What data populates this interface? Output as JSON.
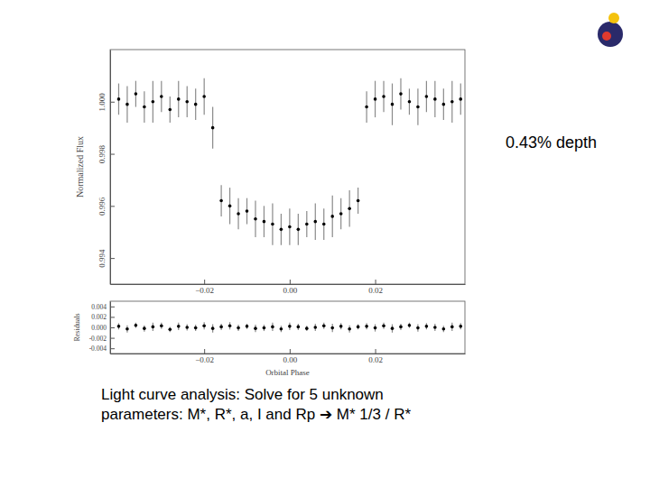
{
  "chart_data": [
    {
      "type": "scatter",
      "y_label": "Normalized Flux",
      "color": "#000000",
      "xlim": [
        -0.042,
        0.041
      ],
      "ylim": [
        0.993,
        1.002
      ],
      "xticks": [
        {
          "value": -0.02,
          "label": "−0.02"
        },
        {
          "value": 0,
          "label": "0.00"
        },
        {
          "value": 0.02,
          "label": "0.02"
        }
      ],
      "yticks": [
        {
          "value": 1,
          "label": "1.000"
        },
        0.998,
        0.996,
        0.994
      ],
      "annotations": [
        "0.43% depth"
      ],
      "x": [
        -0.04,
        -0.038,
        -0.036,
        -0.034,
        -0.032,
        -0.03,
        -0.028,
        -0.026,
        -0.024,
        -0.022,
        -0.02,
        -0.018,
        -0.016,
        -0.014,
        -0.012,
        -0.01,
        -0.008,
        -0.006,
        -0.004,
        -0.002,
        0.0,
        0.002,
        0.004,
        0.006,
        0.008,
        0.01,
        0.012,
        0.014,
        0.016,
        0.018,
        0.02,
        0.022,
        0.024,
        0.026,
        0.028,
        0.03,
        0.032,
        0.034,
        0.036,
        0.038,
        0.04
      ],
      "values": [
        1.0001,
        0.9999,
        1.0003,
        0.9998,
        1.0,
        1.0002,
        0.9997,
        1.0001,
        1.0,
        0.9999,
        1.0002,
        0.999,
        0.9962,
        0.996,
        0.9957,
        0.9958,
        0.9955,
        0.9954,
        0.9953,
        0.9951,
        0.9952,
        0.9951,
        0.9953,
        0.9954,
        0.9953,
        0.9956,
        0.9957,
        0.9959,
        0.9962,
        0.9998,
        1.0001,
        1.0002,
        0.9999,
        1.0003,
        1.0,
        0.9998,
        1.0002,
        1.0001,
        0.9999,
        1.0,
        1.0001
      ],
      "errors": [
        0.0006,
        0.0007,
        0.0005,
        0.0006,
        0.0008,
        0.0006,
        0.0005,
        0.0007,
        0.0006,
        0.0006,
        0.0007,
        0.0008,
        0.0006,
        0.0007,
        0.0006,
        0.0005,
        0.0007,
        0.0006,
        0.0008,
        0.0006,
        0.0007,
        0.0006,
        0.0005,
        0.0007,
        0.0006,
        0.0008,
        0.0006,
        0.0007,
        0.0005,
        0.0006,
        0.0007,
        0.0006,
        0.0008,
        0.0006,
        0.0005,
        0.0007,
        0.0006,
        0.0007,
        0.0006,
        0.0008,
        0.0006
      ]
    },
    {
      "type": "scatter",
      "y_label": "Residuals",
      "x_label": "Orbital Phase",
      "color": "#000000",
      "xlim": [
        -0.042,
        0.041
      ],
      "ylim": [
        -0.005,
        0.005
      ],
      "xticks": [
        {
          "value": -0.02,
          "label": "−0.02"
        },
        {
          "value": 0,
          "label": "0.00"
        },
        {
          "value": 0.02,
          "label": "0.02"
        }
      ],
      "yticks": [
        0.004,
        0.002,
        {
          "value": 0,
          "label": "0.000"
        },
        -0.002,
        -0.004
      ],
      "x": [
        -0.04,
        -0.038,
        -0.036,
        -0.034,
        -0.032,
        -0.03,
        -0.028,
        -0.026,
        -0.024,
        -0.022,
        -0.02,
        -0.018,
        -0.016,
        -0.014,
        -0.012,
        -0.01,
        -0.008,
        -0.006,
        -0.004,
        -0.002,
        0.0,
        0.002,
        0.004,
        0.006,
        0.008,
        0.01,
        0.012,
        0.014,
        0.016,
        0.018,
        0.02,
        0.022,
        0.024,
        0.026,
        0.028,
        0.03,
        0.032,
        0.034,
        0.036,
        0.038,
        0.04
      ],
      "values": [
        0.0002,
        -0.0003,
        0.0004,
        -0.0002,
        0.0001,
        0.0003,
        -0.0004,
        0.0002,
        0.0,
        -0.0001,
        0.0003,
        -0.0002,
        0.0001,
        0.0003,
        -0.0001,
        0.0002,
        -0.0002,
        -0.0001,
        0.0001,
        -0.0003,
        0.0002,
        0.0001,
        -0.0002,
        0.0,
        0.0003,
        -0.0001,
        0.0002,
        -0.0003,
        0.0001,
        0.0002,
        -0.0001,
        0.0003,
        -0.0002,
        0.0001,
        0.0004,
        -0.0001,
        0.0002,
        0.0,
        -0.0003,
        0.0001,
        0.0002
      ],
      "errors": [
        0.0006,
        0.0007,
        0.0005,
        0.0006,
        0.0008,
        0.0006,
        0.0005,
        0.0007,
        0.0006,
        0.0006,
        0.0007,
        0.0008,
        0.0006,
        0.0007,
        0.0006,
        0.0005,
        0.0007,
        0.0006,
        0.0008,
        0.0006,
        0.0007,
        0.0006,
        0.0005,
        0.0007,
        0.0006,
        0.0008,
        0.0006,
        0.0007,
        0.0005,
        0.0006,
        0.0007,
        0.0006,
        0.0008,
        0.0006,
        0.0005,
        0.0007,
        0.0006,
        0.0007,
        0.0006,
        0.0008,
        0.0006
      ]
    }
  ],
  "slide": {
    "caption": [
      "Light curve analysis: Solve for 5 unknown",
      "parameters: M*, R*, a, I and Rp ➔ M* 1/3 / R*"
    ]
  }
}
